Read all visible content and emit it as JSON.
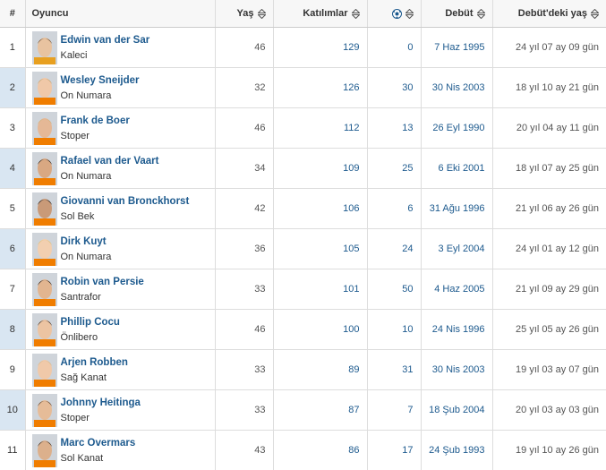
{
  "table": {
    "header": {
      "rank": "#",
      "player": "Oyuncu",
      "age": "Yaş",
      "apps": "Katılımlar",
      "debut": "Debüt",
      "debut_age": "Debüt'deki yaş"
    },
    "rows": [
      {
        "rank": 1,
        "name": "Edwin van der Sar",
        "position": "Kaleci",
        "age": 46,
        "apps": 129,
        "goals": 0,
        "debut": "7 Haz 1995",
        "debut_age": "24 yıl 07 ay 09 gün"
      },
      {
        "rank": 2,
        "name": "Wesley Sneijder",
        "position": "On Numara",
        "age": 32,
        "apps": 126,
        "goals": 30,
        "debut": "30 Nis 2003",
        "debut_age": "18 yıl 10 ay 21 gün"
      },
      {
        "rank": 3,
        "name": "Frank de Boer",
        "position": "Stoper",
        "age": 46,
        "apps": 112,
        "goals": 13,
        "debut": "26 Eyl 1990",
        "debut_age": "20 yıl 04 ay 11 gün"
      },
      {
        "rank": 4,
        "name": "Rafael van der Vaart",
        "position": "On Numara",
        "age": 34,
        "apps": 109,
        "goals": 25,
        "debut": "6 Eki 2001",
        "debut_age": "18 yıl 07 ay 25 gün"
      },
      {
        "rank": 5,
        "name": "Giovanni van Bronckhorst",
        "position": "Sol Bek",
        "age": 42,
        "apps": 106,
        "goals": 6,
        "debut": "31 Ağu 1996",
        "debut_age": "21 yıl 06 ay 26 gün"
      },
      {
        "rank": 6,
        "name": "Dirk Kuyt",
        "position": "On Numara",
        "age": 36,
        "apps": 105,
        "goals": 24,
        "debut": "3 Eyl 2004",
        "debut_age": "24 yıl 01 ay 12 gün"
      },
      {
        "rank": 7,
        "name": "Robin van Persie",
        "position": "Santrafor",
        "age": 33,
        "apps": 101,
        "goals": 50,
        "debut": "4 Haz 2005",
        "debut_age": "21 yıl 09 ay 29 gün"
      },
      {
        "rank": 8,
        "name": "Phillip Cocu",
        "position": "Önlibero",
        "age": 46,
        "apps": 100,
        "goals": 10,
        "debut": "24 Nis 1996",
        "debut_age": "25 yıl 05 ay 26 gün"
      },
      {
        "rank": 9,
        "name": "Arjen Robben",
        "position": "Sağ Kanat",
        "age": 33,
        "apps": 89,
        "goals": 31,
        "debut": "30 Nis 2003",
        "debut_age": "19 yıl 03 ay 07 gün"
      },
      {
        "rank": 10,
        "name": "Johnny Heitinga",
        "position": "Stoper",
        "age": 33,
        "apps": 87,
        "goals": 7,
        "debut": "18 Şub 2004",
        "debut_age": "20 yıl 03 ay 03 gün"
      },
      {
        "rank": 11,
        "name": "Marc Overmars",
        "position": "Sol Kanat",
        "age": 43,
        "apps": 86,
        "goals": 17,
        "debut": "24 Şub 1993",
        "debut_age": "19 yıl 10 ay 26 gün"
      }
    ]
  }
}
